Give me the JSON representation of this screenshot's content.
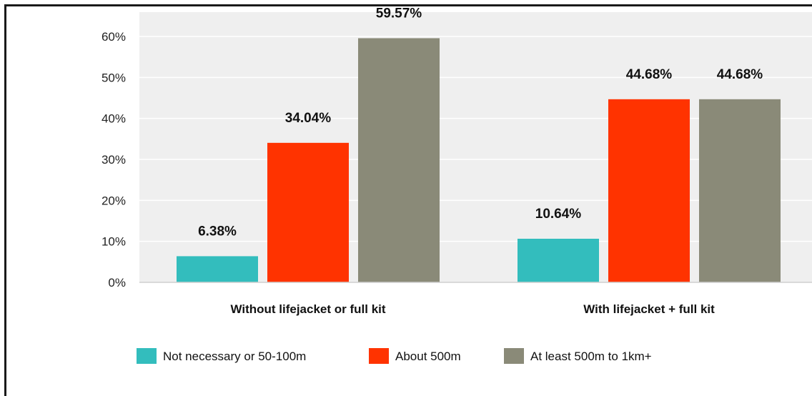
{
  "chart_data": {
    "type": "bar",
    "title": "",
    "xlabel": "",
    "ylabel": "",
    "categories": [
      "Without lifejacket or full kit",
      "With lifejacket + full kit"
    ],
    "series": [
      {
        "name": "Not necessary or 50-100m",
        "values": [
          6.38,
          10.64
        ],
        "labels": [
          "6.38%",
          "10.64%"
        ],
        "color": "#33bdbd"
      },
      {
        "name": "About 500m",
        "values": [
          34.04,
          44.68
        ],
        "labels": [
          "34.04%",
          "44.68%"
        ],
        "color": "#ff3300"
      },
      {
        "name": "At least 500m to 1km+",
        "values": [
          59.57,
          44.68
        ],
        "labels": [
          "59.57%",
          "44.68%"
        ],
        "color": "#8a8a78"
      }
    ],
    "ylim": [
      0,
      60
    ],
    "yticks": [
      0,
      10,
      20,
      30,
      40,
      50,
      60
    ],
    "ytick_labels": [
      "0%",
      "10%",
      "20%",
      "30%",
      "40%",
      "50%",
      "60%"
    ],
    "grid": true,
    "legend": "bottom"
  },
  "colors": {
    "plot_background": "#efefef",
    "gridline": "#ffffff",
    "axis": "#cfcfcf"
  }
}
